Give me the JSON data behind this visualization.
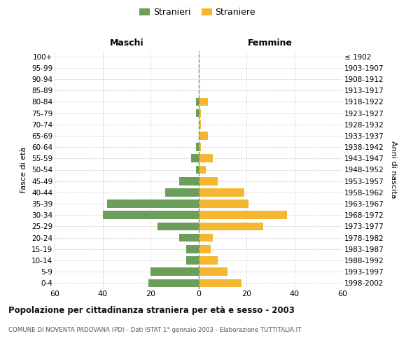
{
  "age_groups": [
    "100+",
    "95-99",
    "90-94",
    "85-89",
    "80-84",
    "75-79",
    "70-74",
    "65-69",
    "60-64",
    "55-59",
    "50-54",
    "45-49",
    "40-44",
    "35-39",
    "30-34",
    "25-29",
    "20-24",
    "15-19",
    "10-14",
    "5-9",
    "0-4"
  ],
  "birth_years": [
    "≤ 1902",
    "1903-1907",
    "1908-1912",
    "1913-1917",
    "1918-1922",
    "1923-1927",
    "1928-1932",
    "1933-1937",
    "1938-1942",
    "1943-1947",
    "1948-1952",
    "1953-1957",
    "1958-1962",
    "1963-1967",
    "1968-1972",
    "1973-1977",
    "1978-1982",
    "1983-1987",
    "1988-1992",
    "1993-1997",
    "1998-2002"
  ],
  "maschi": [
    0,
    0,
    0,
    0,
    1,
    1,
    0,
    0,
    1,
    3,
    1,
    8,
    14,
    38,
    40,
    17,
    8,
    5,
    5,
    20,
    21
  ],
  "femmine": [
    0,
    0,
    0,
    0,
    4,
    1,
    1,
    4,
    1,
    6,
    3,
    8,
    19,
    21,
    37,
    27,
    6,
    5,
    8,
    12,
    18
  ],
  "male_color": "#6a9e5a",
  "female_color": "#f5b731",
  "grid_color": "#cccccc",
  "centerline_color": "#888866",
  "title": "Popolazione per cittadinanza straniera per età e sesso - 2003",
  "subtitle": "COMUNE DI NOVENTA PADOVANA (PD) - Dati ISTAT 1° gennaio 2003 - Elaborazione TUTTITALIA.IT",
  "ylabel_left": "Fasce di età",
  "ylabel_right": "Anni di nascita",
  "xlabel_maschi": "Maschi",
  "xlabel_femmine": "Femmine",
  "legend_male": "Stranieri",
  "legend_female": "Straniere",
  "xlim": 60,
  "background_color": "#ffffff"
}
